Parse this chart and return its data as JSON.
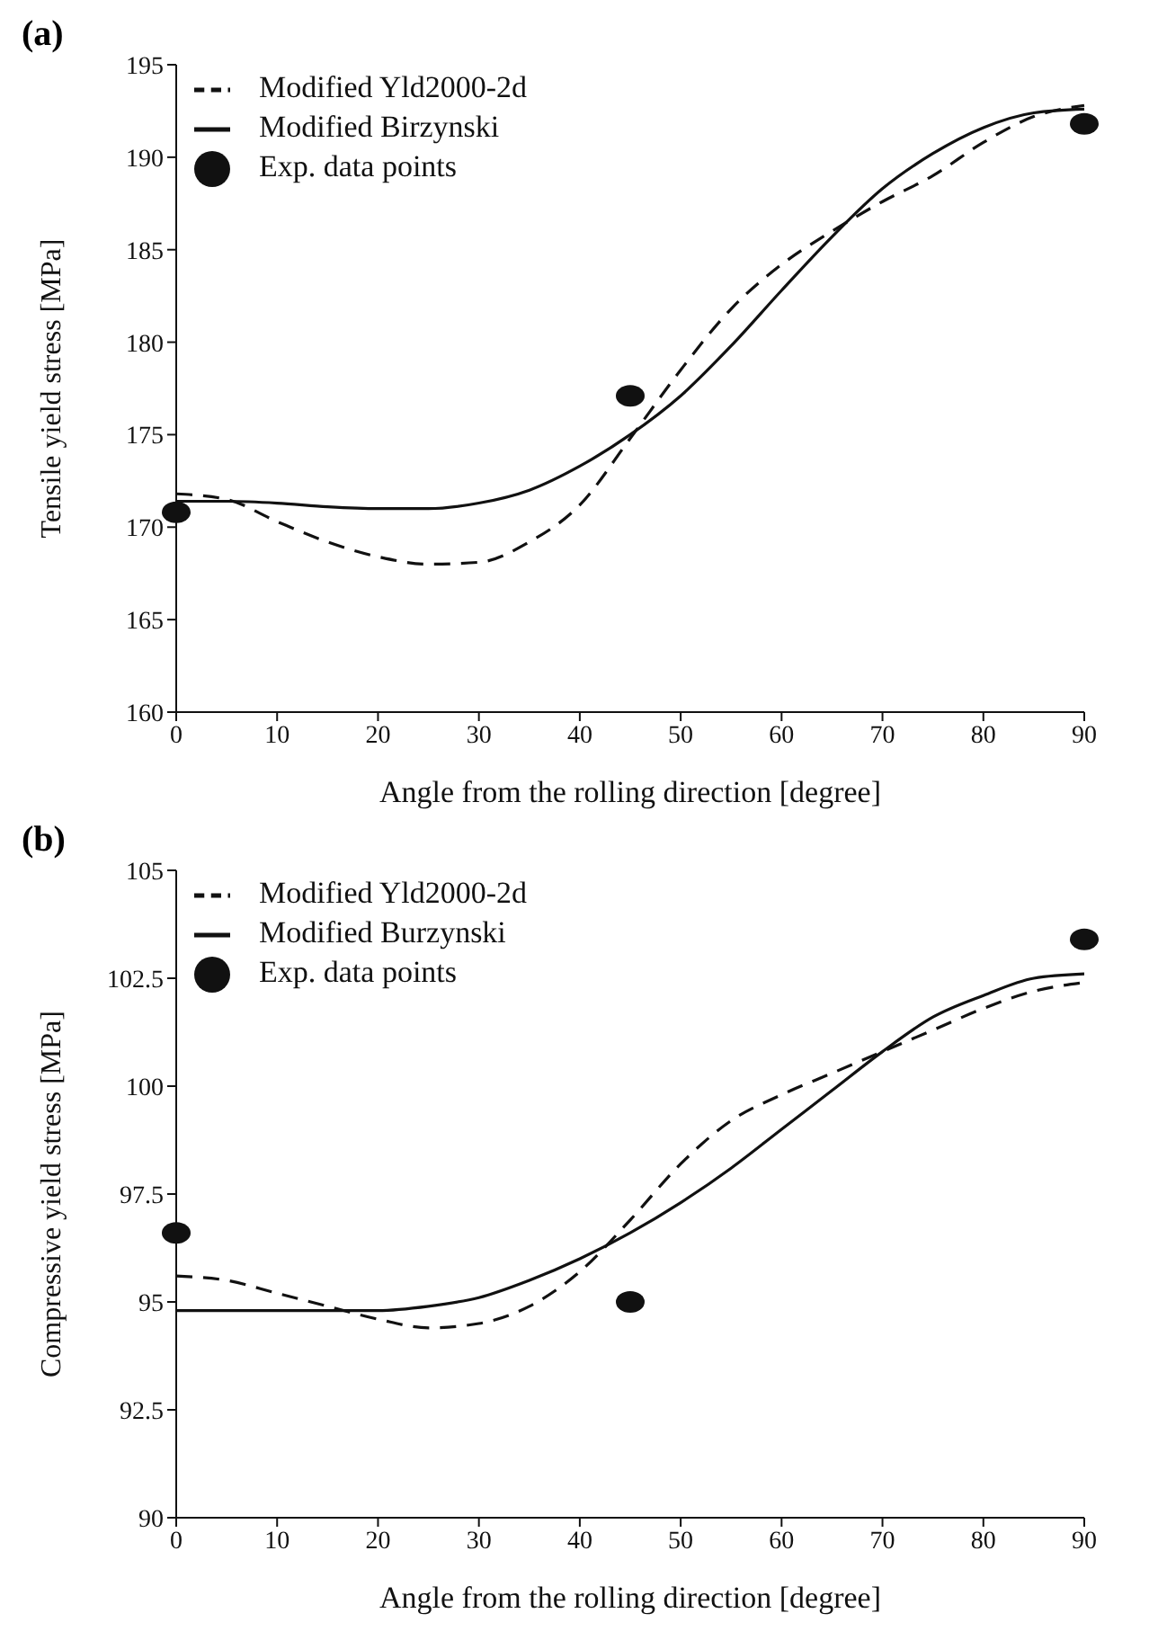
{
  "chart_data": [
    {
      "type": "line",
      "title": "(a)",
      "xlabel": "Angle from the rolling direction [degree]",
      "ylabel": "Tensile yield stress [MPa]",
      "xlim": [
        0,
        90
      ],
      "xticks": [
        0,
        10,
        20,
        30,
        40,
        50,
        60,
        70,
        80,
        90
      ],
      "ylim": [
        160,
        195
      ],
      "yticks": [
        160,
        165,
        170,
        175,
        180,
        185,
        190,
        195
      ],
      "grid": false,
      "legend": "top left",
      "series": [
        {
          "name": "Modified Yld2000-2d",
          "line_style": "dashed",
          "color": "#111111",
          "x": [
            0,
            5,
            10,
            15,
            20,
            25,
            30,
            35,
            40,
            45,
            50,
            55,
            60,
            65,
            70,
            75,
            80,
            85,
            90
          ],
          "values": [
            171.8,
            171.5,
            170.3,
            169.2,
            168.4,
            168.0,
            168.1,
            169.2,
            171.2,
            174.8,
            178.5,
            181.8,
            184.2,
            186.0,
            187.6,
            189.0,
            190.8,
            192.2,
            192.8
          ]
        },
        {
          "name": "Modified Birzynski",
          "line_style": "solid",
          "color": "#111111",
          "x": [
            0,
            5,
            10,
            15,
            20,
            25,
            30,
            35,
            40,
            45,
            50,
            55,
            60,
            65,
            70,
            75,
            80,
            85,
            90
          ],
          "values": [
            171.4,
            171.4,
            171.3,
            171.1,
            171.0,
            171.0,
            171.3,
            172.0,
            173.3,
            175.0,
            177.1,
            179.8,
            182.8,
            185.7,
            188.3,
            190.2,
            191.6,
            192.4,
            192.6
          ]
        },
        {
          "name": "Exp. data points",
          "type": "scatter",
          "marker": "circle",
          "color": "#111111",
          "x": [
            0,
            45,
            90
          ],
          "values": [
            170.8,
            177.1,
            191.8
          ]
        }
      ]
    },
    {
      "type": "line",
      "title": "(b)",
      "xlabel": "Angle from the rolling direction [degree]",
      "ylabel": "Compressive yield stress [MPa]",
      "xlim": [
        0,
        90
      ],
      "xticks": [
        0,
        10,
        20,
        30,
        40,
        50,
        60,
        70,
        80,
        90
      ],
      "ylim": [
        90,
        105
      ],
      "yticks": [
        90,
        92.5,
        95,
        97.5,
        100,
        102.5,
        105
      ],
      "grid": false,
      "legend": "top left",
      "series": [
        {
          "name": "Modified Yld2000-2d",
          "line_style": "dashed",
          "color": "#111111",
          "x": [
            0,
            5,
            10,
            15,
            20,
            25,
            30,
            35,
            40,
            45,
            50,
            55,
            60,
            65,
            70,
            75,
            80,
            85,
            90
          ],
          "values": [
            95.6,
            95.5,
            95.2,
            94.9,
            94.6,
            94.4,
            94.5,
            94.9,
            95.7,
            96.9,
            98.2,
            99.2,
            99.8,
            100.3,
            100.8,
            101.3,
            101.8,
            102.2,
            102.4
          ]
        },
        {
          "name": "Modified Burzynski",
          "line_style": "solid",
          "color": "#111111",
          "x": [
            0,
            5,
            10,
            15,
            20,
            25,
            30,
            35,
            40,
            45,
            50,
            55,
            60,
            65,
            70,
            75,
            80,
            85,
            90
          ],
          "values": [
            94.8,
            94.8,
            94.8,
            94.8,
            94.8,
            94.9,
            95.1,
            95.5,
            96.0,
            96.6,
            97.3,
            98.1,
            99.0,
            99.9,
            100.8,
            101.6,
            102.1,
            102.5,
            102.6
          ]
        },
        {
          "name": "Exp. data points",
          "type": "scatter",
          "marker": "circle",
          "color": "#111111",
          "x": [
            0,
            45,
            90
          ],
          "values": [
            96.6,
            95.0,
            103.4
          ]
        }
      ]
    }
  ]
}
